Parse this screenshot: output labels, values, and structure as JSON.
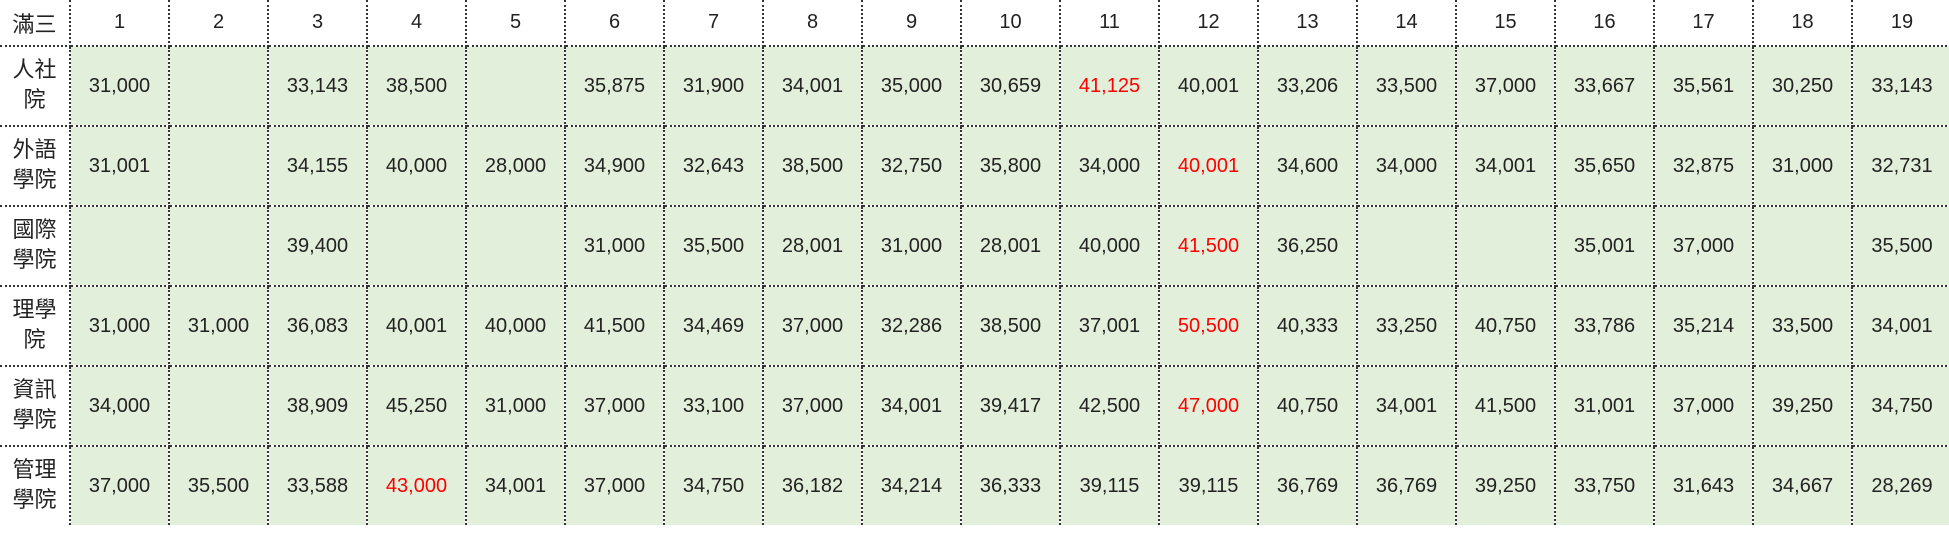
{
  "corner_label": "滿三",
  "columns": [
    "1",
    "2",
    "3",
    "4",
    "5",
    "6",
    "7",
    "8",
    "9",
    "10",
    "11",
    "12",
    "13",
    "14",
    "15",
    "16",
    "17",
    "18",
    "19"
  ],
  "rows": [
    {
      "label": "人社院",
      "cells": [
        "31,000",
        "",
        "33,143",
        "38,500",
        "",
        "35,875",
        "31,900",
        "34,001",
        "35,000",
        "30,659",
        "41,125",
        "40,001",
        "33,206",
        "33,500",
        "37,000",
        "33,667",
        "35,561",
        "30,250",
        "33,143"
      ],
      "highlight_index": 10
    },
    {
      "label": "外語學院",
      "cells": [
        "31,001",
        "",
        "34,155",
        "40,000",
        "28,000",
        "34,900",
        "32,643",
        "38,500",
        "32,750",
        "35,800",
        "34,000",
        "40,001",
        "34,600",
        "34,000",
        "34,001",
        "35,650",
        "32,875",
        "31,000",
        "32,731"
      ],
      "highlight_index": 11
    },
    {
      "label": "國際學院",
      "cells": [
        "",
        "",
        "39,400",
        "",
        "",
        "31,000",
        "35,500",
        "28,001",
        "31,000",
        "28,001",
        "40,000",
        "41,500",
        "36,250",
        "",
        "",
        "35,001",
        "37,000",
        "",
        "35,500"
      ],
      "highlight_index": 11
    },
    {
      "label": "理學院",
      "cells": [
        "31,000",
        "31,000",
        "36,083",
        "40,001",
        "40,000",
        "41,500",
        "34,469",
        "37,000",
        "32,286",
        "38,500",
        "37,001",
        "50,500",
        "40,333",
        "33,250",
        "40,750",
        "33,786",
        "35,214",
        "33,500",
        "34,001"
      ],
      "highlight_index": 11
    },
    {
      "label": "資訊學院",
      "cells": [
        "34,000",
        "",
        "38,909",
        "45,250",
        "31,000",
        "37,000",
        "33,100",
        "37,000",
        "34,001",
        "39,417",
        "42,500",
        "47,000",
        "40,750",
        "34,001",
        "41,500",
        "31,001",
        "37,000",
        "39,250",
        "34,750"
      ],
      "highlight_index": 11
    },
    {
      "label": "管理學院",
      "cells": [
        "37,000",
        "35,500",
        "33,588",
        "43,000",
        "34,001",
        "37,000",
        "34,750",
        "36,182",
        "34,214",
        "36,333",
        "39,115",
        "39,115",
        "36,769",
        "36,769",
        "39,250",
        "33,750",
        "31,643",
        "34,667",
        "28,269"
      ],
      "highlight_index": 3
    }
  ],
  "colors": {
    "cell_fill": "#e2efda",
    "highlight_text": "#ff0000",
    "normal_text": "#222222",
    "grid_line": "#333333"
  }
}
